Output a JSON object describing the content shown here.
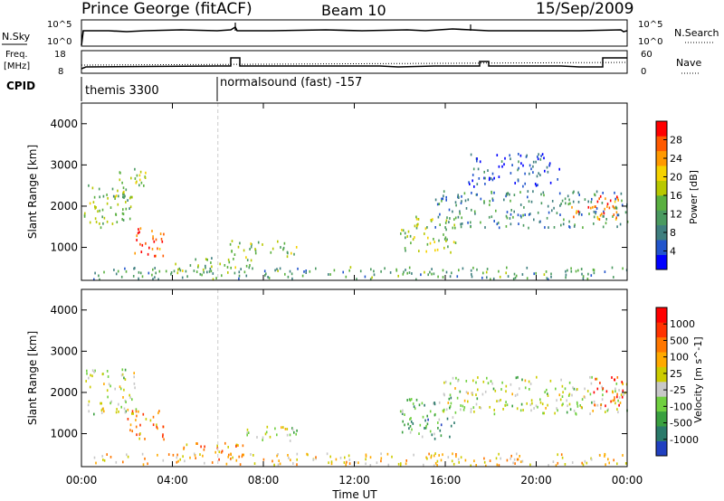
{
  "header": {
    "station": "Prince George (fitACF)",
    "beam": "Beam 10",
    "date": "15/Sep/2009"
  },
  "top_panels": {
    "nsky_label": "N.Sky",
    "nsky_ticks": [
      "10^5",
      "10^0"
    ],
    "nsearch_label": "N.Search",
    "nsearch_ticks": [
      "10^5",
      "10^0"
    ],
    "freq_label_1": "Freq.",
    "freq_label_2": "[MHz]",
    "freq_ticks": [
      "18",
      "8"
    ],
    "nave_label": "Nave",
    "nave_ticks": [
      "60",
      "0"
    ],
    "cpid_label": "CPID",
    "cpid_segments": [
      {
        "label": "themis 3300",
        "start_hour": 0
      },
      {
        "label": "normalsound (fast) -157",
        "start_hour": 6.0
      }
    ]
  },
  "colors": {
    "power_scale": [
      "#0000ff",
      "#2255cc",
      "#3f7f7f",
      "#4a9a60",
      "#5ab040",
      "#b8c800",
      "#f5d200",
      "#ff9900",
      "#ff5a00",
      "#ff0000"
    ],
    "velocity_scale": [
      "#2040c0",
      "#2a7a6a",
      "#3aa040",
      "#70d040",
      "#c8c8c8",
      "#cccc00",
      "#ffaa00",
      "#ff7700",
      "#ff3300",
      "#ff0000"
    ]
  },
  "chart_data": [
    {
      "type": "heatmap",
      "panel": "power",
      "ylabel": "Slant Range [km]",
      "xlabel": "Time UT",
      "xlim_hours": [
        0,
        24
      ],
      "ylim_km": [
        200,
        4500
      ],
      "x_ticks": [
        "00:00",
        "04:00",
        "08:00",
        "12:00",
        "16:00",
        "20:00",
        "00:00"
      ],
      "y_ticks": [
        "1000",
        "2000",
        "3000",
        "4000"
      ],
      "colorbar_label": "Power [dB]",
      "colorbar_ticks": [
        "4",
        "8",
        "12",
        "16",
        "20",
        "24",
        "28"
      ],
      "features": [
        {
          "t_start": 0.1,
          "t_end": 2.2,
          "r_start": 1500,
          "r_end": 2600,
          "level": 0.45
        },
        {
          "t_start": 2.0,
          "t_end": 3.6,
          "r_start": 800,
          "r_end": 1500,
          "level": 0.85
        },
        {
          "t_start": 1.5,
          "t_end": 2.8,
          "r_start": 2200,
          "r_end": 3000,
          "level": 0.5
        },
        {
          "t_start": 4.0,
          "t_end": 7.5,
          "r_start": 400,
          "r_end": 800,
          "level": 0.45
        },
        {
          "t_start": 6.5,
          "t_end": 9.5,
          "r_start": 800,
          "r_end": 1200,
          "level": 0.5
        },
        {
          "t_start": 0.5,
          "t_end": 24,
          "r_start": 250,
          "r_end": 550,
          "level": 0.35
        },
        {
          "t_start": 14.0,
          "t_end": 16.5,
          "r_start": 900,
          "r_end": 1800,
          "level": 0.5
        },
        {
          "t_start": 15.5,
          "t_end": 24,
          "r_start": 1500,
          "r_end": 2400,
          "level": 0.3
        },
        {
          "t_start": 21.5,
          "t_end": 23.8,
          "r_start": 1700,
          "r_end": 2300,
          "level": 0.8
        },
        {
          "t_start": 17.0,
          "t_end": 21.0,
          "r_start": 2500,
          "r_end": 3300,
          "level": 0.15
        }
      ]
    },
    {
      "type": "heatmap",
      "panel": "velocity",
      "ylabel": "Slant Range [km]",
      "xlabel": "Time UT",
      "xlim_hours": [
        0,
        24
      ],
      "ylim_km": [
        200,
        4500
      ],
      "x_ticks": [
        "00:00",
        "04:00",
        "08:00",
        "12:00",
        "16:00",
        "20:00",
        "00:00"
      ],
      "y_ticks": [
        "1000",
        "2000",
        "3000",
        "4000"
      ],
      "colorbar_label": "Velocity [m s^-1]",
      "colorbar_ticks": [
        "1000",
        "500",
        "100",
        "25",
        "-25",
        "-100",
        "-500",
        "-1000"
      ],
      "features": [
        {
          "t_start": 0.1,
          "t_end": 2.4,
          "r_start": 1500,
          "r_end": 2600,
          "level": 0.45
        },
        {
          "t_start": 2.0,
          "t_end": 3.6,
          "r_start": 800,
          "r_end": 1600,
          "level": 0.7
        },
        {
          "t_start": 4.2,
          "t_end": 7.2,
          "r_start": 400,
          "r_end": 800,
          "level": 0.72
        },
        {
          "t_start": 7.0,
          "t_end": 9.5,
          "r_start": 800,
          "r_end": 1200,
          "level": 0.45
        },
        {
          "t_start": 0.5,
          "t_end": 24,
          "r_start": 250,
          "r_end": 550,
          "level": 0.6
        },
        {
          "t_start": 14.0,
          "t_end": 16.5,
          "r_start": 900,
          "r_end": 1900,
          "level": 0.25
        },
        {
          "t_start": 15.5,
          "t_end": 24,
          "r_start": 1500,
          "r_end": 2400,
          "level": 0.45
        },
        {
          "t_start": 22.5,
          "t_end": 23.8,
          "r_start": 1700,
          "r_end": 2400,
          "level": 0.9
        }
      ]
    }
  ]
}
